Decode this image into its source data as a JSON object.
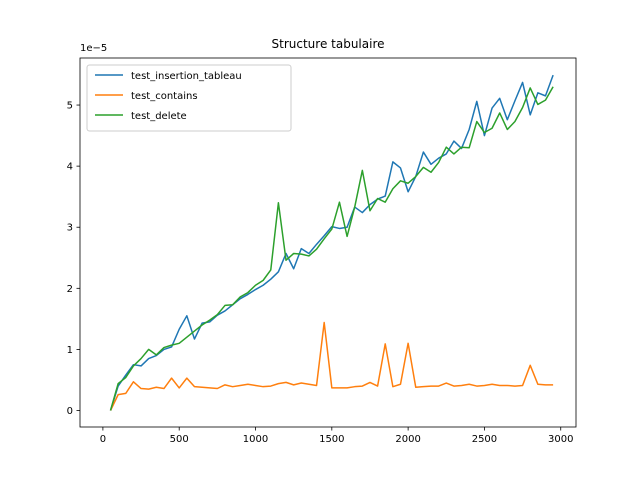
{
  "chart_data": {
    "type": "line",
    "title": "Structure tabulaire",
    "xlabel": "",
    "ylabel": "",
    "y_scale_label": "1e−5",
    "xlim": [
      -150,
      3100
    ],
    "ylim": [
      -0.27,
      5.77
    ],
    "x_ticks": [
      0,
      500,
      1000,
      1500,
      2000,
      2500,
      3000
    ],
    "x_tick_labels": [
      "0",
      "500",
      "1000",
      "1500",
      "2000",
      "2500",
      "3000"
    ],
    "y_ticks": [
      0,
      1,
      2,
      3,
      4,
      5
    ],
    "y_tick_labels": [
      "0",
      "1",
      "2",
      "3",
      "4",
      "5"
    ],
    "grid": false,
    "legend_position": "top-left",
    "x": [
      50,
      100,
      150,
      200,
      250,
      300,
      350,
      400,
      450,
      500,
      550,
      600,
      650,
      700,
      750,
      800,
      850,
      900,
      950,
      1000,
      1050,
      1100,
      1150,
      1200,
      1250,
      1300,
      1350,
      1400,
      1450,
      1500,
      1550,
      1600,
      1650,
      1700,
      1750,
      1800,
      1850,
      1900,
      1950,
      2000,
      2050,
      2100,
      2150,
      2200,
      2250,
      2300,
      2350,
      2400,
      2450,
      2500,
      2550,
      2600,
      2650,
      2700,
      2750,
      2800,
      2850,
      2900,
      2950
    ],
    "series": [
      {
        "name": "test_insertion_tableau",
        "color": "#1f77b4",
        "values": [
          0.0,
          0.4,
          0.58,
          0.75,
          0.73,
          0.85,
          0.9,
          1.0,
          1.04,
          1.33,
          1.55,
          1.17,
          1.43,
          1.45,
          1.56,
          1.63,
          1.73,
          1.83,
          1.9,
          1.98,
          2.05,
          2.15,
          2.27,
          2.57,
          2.32,
          2.65,
          2.57,
          2.72,
          2.86,
          3.01,
          2.98,
          3.0,
          3.33,
          3.24,
          3.37,
          3.46,
          3.51,
          4.07,
          3.97,
          3.58,
          3.83,
          4.23,
          4.03,
          4.13,
          4.2,
          4.41,
          4.29,
          4.6,
          5.06,
          4.5,
          4.95,
          5.11,
          4.76,
          5.07,
          5.37,
          4.84,
          5.2,
          5.15,
          5.49
        ]
      },
      {
        "name": "test_contains",
        "color": "#ff7f0e",
        "values": [
          0.0,
          0.26,
          0.28,
          0.47,
          0.36,
          0.35,
          0.38,
          0.36,
          0.53,
          0.37,
          0.53,
          0.39,
          0.38,
          0.37,
          0.36,
          0.42,
          0.39,
          0.41,
          0.43,
          0.41,
          0.39,
          0.4,
          0.44,
          0.46,
          0.42,
          0.45,
          0.43,
          0.41,
          1.44,
          0.37,
          0.37,
          0.37,
          0.39,
          0.4,
          0.46,
          0.4,
          1.09,
          0.39,
          0.43,
          1.1,
          0.38,
          0.39,
          0.4,
          0.4,
          0.45,
          0.4,
          0.41,
          0.43,
          0.4,
          0.41,
          0.43,
          0.41,
          0.41,
          0.4,
          0.41,
          0.74,
          0.43,
          0.42,
          0.42
        ]
      },
      {
        "name": "test_delete",
        "color": "#2ca02c",
        "values": [
          0.0,
          0.44,
          0.54,
          0.73,
          0.85,
          1.0,
          0.91,
          1.03,
          1.07,
          1.1,
          1.2,
          1.3,
          1.4,
          1.48,
          1.57,
          1.72,
          1.73,
          1.86,
          1.93,
          2.05,
          2.13,
          2.3,
          3.4,
          2.46,
          2.57,
          2.56,
          2.53,
          2.64,
          2.81,
          2.97,
          3.41,
          2.85,
          3.33,
          3.93,
          3.27,
          3.47,
          3.41,
          3.63,
          3.76,
          3.72,
          3.83,
          3.98,
          3.9,
          4.06,
          4.31,
          4.2,
          4.31,
          4.3,
          4.73,
          4.55,
          4.62,
          4.87,
          4.6,
          4.73,
          4.96,
          5.28,
          5.01,
          5.08,
          5.3
        ]
      }
    ]
  }
}
